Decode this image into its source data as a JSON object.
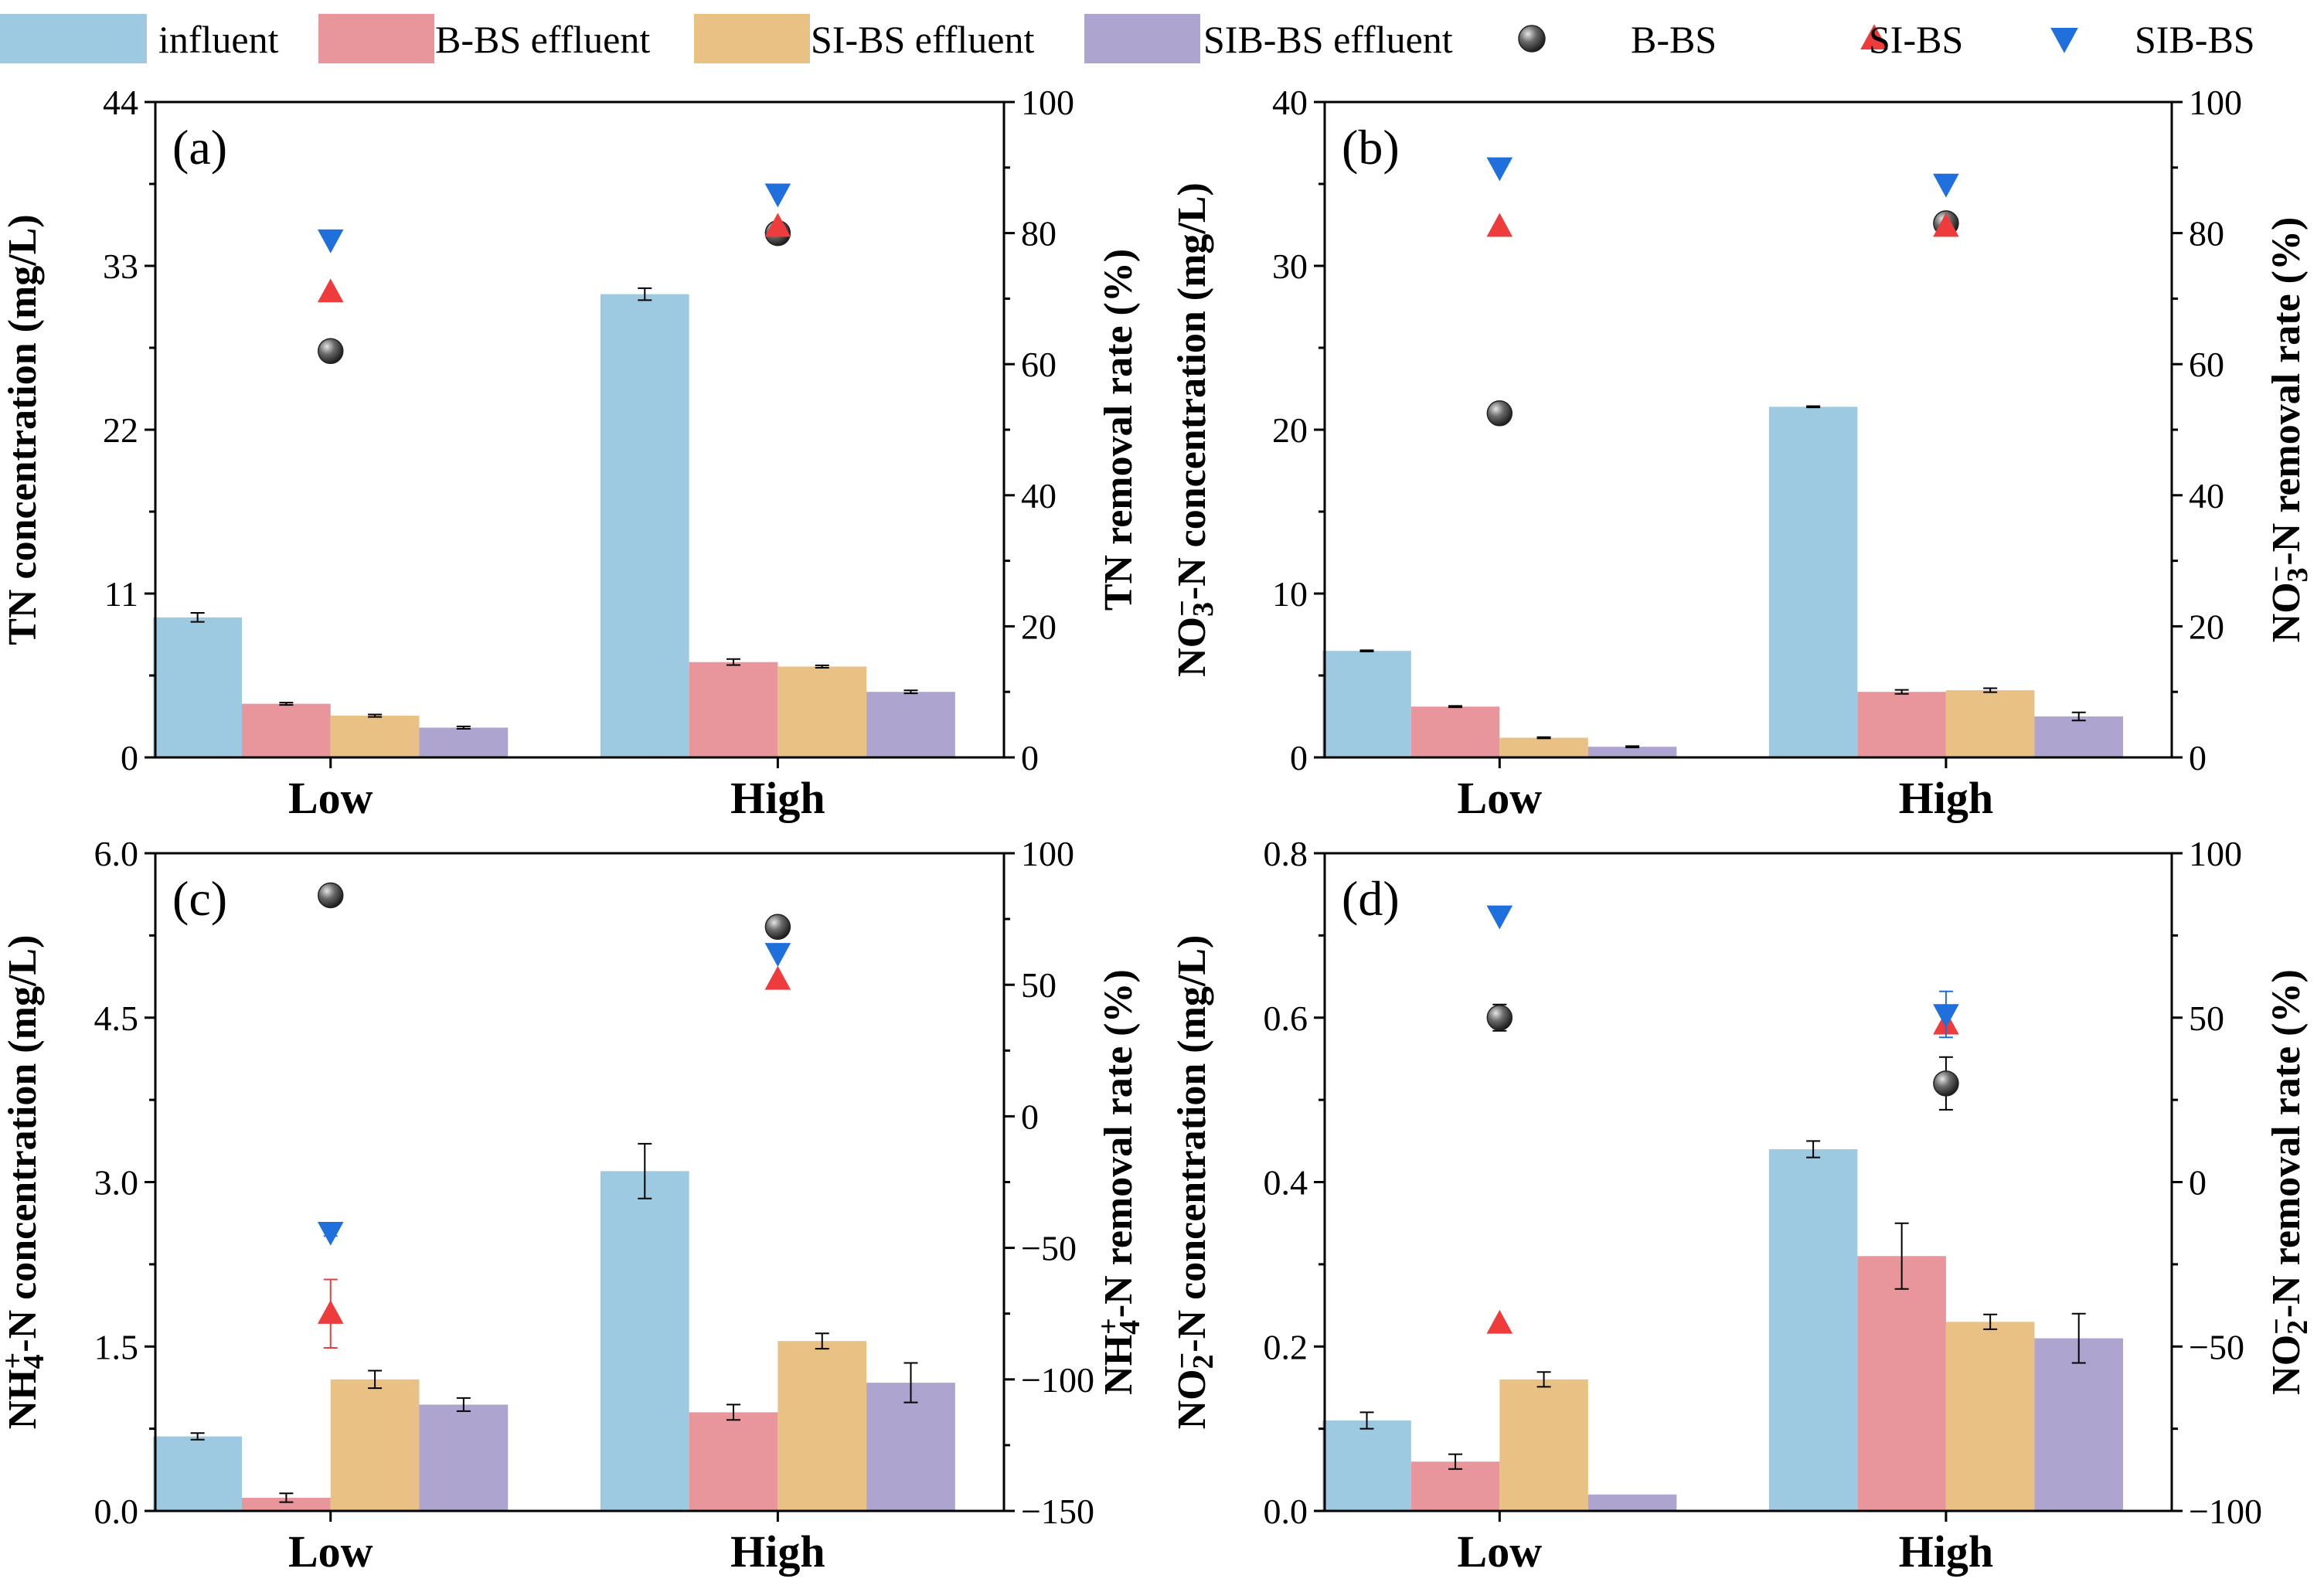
{
  "legend": [
    {
      "label": "influent",
      "kind": "bar",
      "color": "#9ecae1"
    },
    {
      "label": "B-BS effluent",
      "kind": "bar",
      "color": "#e8969b"
    },
    {
      "label": "SI-BS effluent",
      "kind": "bar",
      "color": "#eac185"
    },
    {
      "label": "SIB-BS effluent",
      "kind": "bar",
      "color": "#ada5d0"
    },
    {
      "label": "B-BS",
      "kind": "sphere",
      "color": "#555555"
    },
    {
      "label": "SI-BS",
      "kind": "triangle-up",
      "color": "#ee3b3b"
    },
    {
      "label": "SIB-BS",
      "kind": "triangle-down",
      "color": "#1f6fdc"
    }
  ],
  "chart_data": [
    {
      "type": "bar",
      "panel": "(a)",
      "categories": [
        "Low",
        "High"
      ],
      "ylabel": "TN concentration (mg/L)",
      "ylim": [
        0,
        44
      ],
      "yticks": [
        0,
        11,
        22,
        33,
        44
      ],
      "y2label": "TN removal rate (%)",
      "y2lim": [
        0,
        100
      ],
      "y2ticks": [
        0,
        20,
        40,
        60,
        80,
        100
      ],
      "series": [
        {
          "name": "influent",
          "values": [
            9.4,
            31.1
          ],
          "errors": [
            0.3,
            0.4
          ]
        },
        {
          "name": "B-BS effluent",
          "values": [
            3.6,
            6.4
          ],
          "errors": [
            0.08,
            0.2
          ]
        },
        {
          "name": "SI-BS effluent",
          "values": [
            2.8,
            6.1
          ],
          "errors": [
            0.08,
            0.08
          ]
        },
        {
          "name": "SIB-BS effluent",
          "values": [
            2.0,
            4.4
          ],
          "errors": [
            0.08,
            0.1
          ]
        }
      ],
      "removal": [
        {
          "name": "B-BS",
          "values": [
            62,
            80
          ],
          "errors": [
            0,
            0
          ]
        },
        {
          "name": "SI-BS",
          "values": [
            71,
            81
          ],
          "errors": [
            0,
            0
          ]
        },
        {
          "name": "SIB-BS",
          "values": [
            79,
            86
          ],
          "errors": [
            0,
            0
          ]
        }
      ]
    },
    {
      "type": "bar",
      "panel": "(b)",
      "categories": [
        "Low",
        "High"
      ],
      "ylabel": "NO3−-N concentration (mg/L)",
      "ylim": [
        0,
        40
      ],
      "yticks": [
        0,
        10,
        20,
        30,
        40
      ],
      "y2label": "NO3−-N removal rate (%)",
      "y2lim": [
        0,
        100
      ],
      "y2ticks": [
        0,
        20,
        40,
        60,
        80,
        100
      ],
      "series": [
        {
          "name": "influent",
          "values": [
            6.5,
            21.4
          ],
          "errors": [
            0.04,
            0.04
          ]
        },
        {
          "name": "B-BS effluent",
          "values": [
            3.1,
            4.0
          ],
          "errors": [
            0.04,
            0.12
          ]
        },
        {
          "name": "SI-BS effluent",
          "values": [
            1.2,
            4.1
          ],
          "errors": [
            0.04,
            0.12
          ]
        },
        {
          "name": "SIB-BS effluent",
          "values": [
            0.65,
            2.5
          ],
          "errors": [
            0.04,
            0.25
          ]
        }
      ],
      "removal": [
        {
          "name": "B-BS",
          "values": [
            52.5,
            81.5
          ],
          "errors": [
            0,
            0
          ]
        },
        {
          "name": "SI-BS",
          "values": [
            81,
            81
          ],
          "errors": [
            0,
            0
          ]
        },
        {
          "name": "SIB-BS",
          "values": [
            90,
            87.5
          ],
          "errors": [
            0,
            0
          ]
        }
      ]
    },
    {
      "type": "bar",
      "panel": "(c)",
      "categories": [
        "Low",
        "High"
      ],
      "ylabel": "NH4+-N concentration (mg/L)",
      "ylim": [
        0,
        6.0
      ],
      "yticks": [
        "0.0",
        "1.5",
        "3.0",
        "4.5",
        "6.0"
      ],
      "y2label": "NH4+-N removal rate (%)",
      "y2lim": [
        -150,
        100
      ],
      "y2ticks": [
        -150,
        -100,
        -50,
        0,
        50,
        100
      ],
      "series": [
        {
          "name": "influent",
          "values": [
            0.68,
            3.1
          ],
          "errors": [
            0.03,
            0.25
          ]
        },
        {
          "name": "B-BS effluent",
          "values": [
            0.12,
            0.9
          ],
          "errors": [
            0.04,
            0.07
          ]
        },
        {
          "name": "SI-BS effluent",
          "values": [
            1.2,
            1.55
          ],
          "errors": [
            0.08,
            0.07
          ]
        },
        {
          "name": "SIB-BS effluent",
          "values": [
            0.97,
            1.17
          ],
          "errors": [
            0.06,
            0.18
          ]
        }
      ],
      "removal": [
        {
          "name": "B-BS",
          "values": [
            84,
            72
          ],
          "errors": [
            1.5,
            0
          ]
        },
        {
          "name": "SI-BS",
          "values": [
            -75,
            52
          ],
          "errors": [
            13,
            0
          ]
        },
        {
          "name": "SIB-BS",
          "values": [
            -44,
            62
          ],
          "errors": [
            1.5,
            0
          ]
        }
      ]
    },
    {
      "type": "bar",
      "panel": "(d)",
      "categories": [
        "Low",
        "High"
      ],
      "ylabel": "NO2−-N concentration (mg/L)",
      "ylim": [
        0,
        0.8
      ],
      "yticks": [
        "0.0",
        "0.2",
        "0.4",
        "0.6",
        "0.8"
      ],
      "y2label": "NO2−-N removal rate (%)",
      "y2lim": [
        -100,
        100
      ],
      "y2ticks": [
        -100,
        -50,
        0,
        50,
        100
      ],
      "series": [
        {
          "name": "influent",
          "values": [
            0.11,
            0.44
          ],
          "errors": [
            0.01,
            0.01
          ]
        },
        {
          "name": "B-BS effluent",
          "values": [
            0.06,
            0.31
          ],
          "errors": [
            0.009,
            0.04
          ]
        },
        {
          "name": "SI-BS effluent",
          "values": [
            0.16,
            0.23
          ],
          "errors": [
            0.009,
            0.009
          ]
        },
        {
          "name": "SIB-BS effluent",
          "values": [
            0.02,
            0.21
          ],
          "errors": [
            0,
            0.03
          ]
        }
      ],
      "removal": [
        {
          "name": "B-BS",
          "values": [
            50,
            30
          ],
          "errors": [
            4,
            8
          ]
        },
        {
          "name": "SI-BS",
          "values": [
            -43,
            48
          ],
          "errors": [
            0,
            0
          ]
        },
        {
          "name": "SIB-BS",
          "values": [
            81,
            51
          ],
          "errors": [
            0,
            7
          ]
        }
      ]
    }
  ]
}
